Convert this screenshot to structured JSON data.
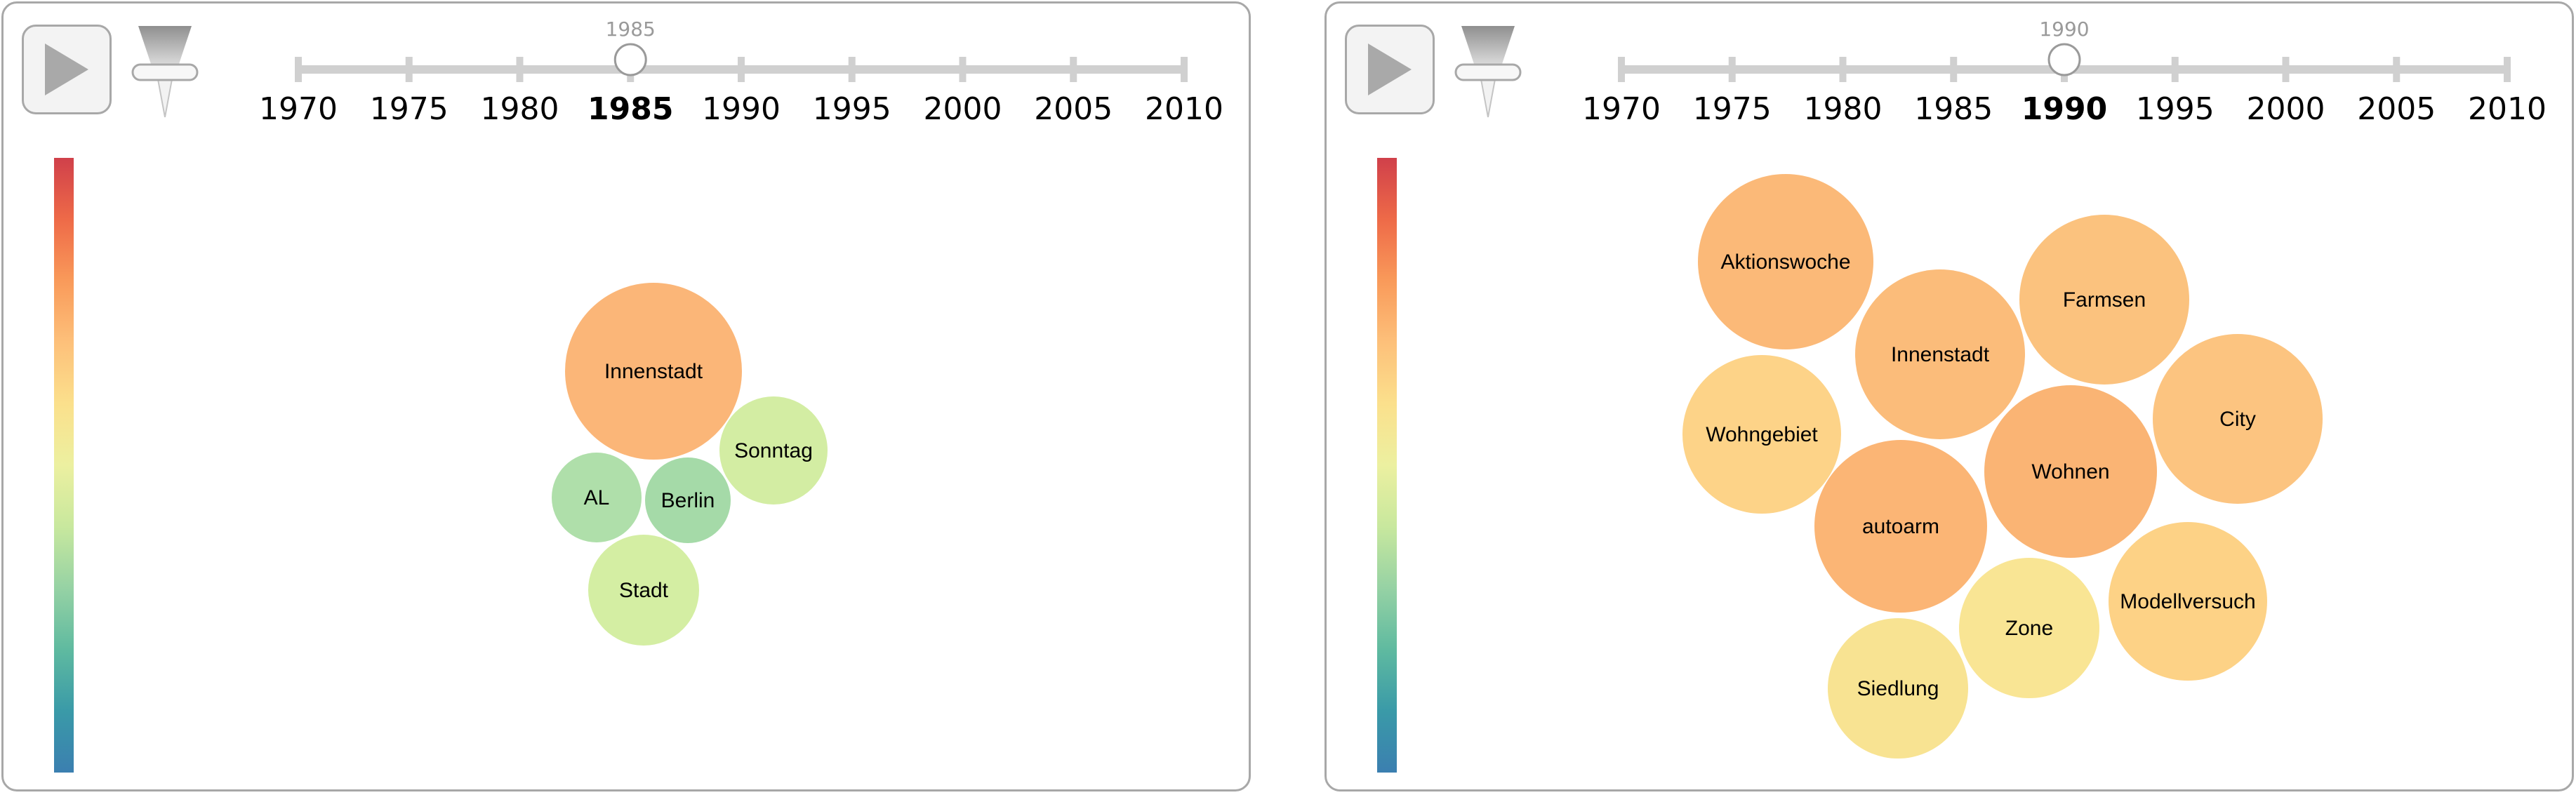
{
  "timeline": {
    "years": [
      "1970",
      "1975",
      "1980",
      "1985",
      "1990",
      "1995",
      "2000",
      "2005",
      "2010"
    ]
  },
  "colorbar": {
    "ticks": [
      "12",
      "11",
      "10",
      "9.0",
      "8.0",
      "7.0",
      "6.0",
      "5.0",
      "4.0",
      "3.0",
      "2.0",
      "1.0",
      "0.0"
    ],
    "min": 0,
    "max": 12.5,
    "colors": [
      "#3b7fb0",
      "#3a9aa8",
      "#5fbaa0",
      "#96d2a4",
      "#c8e89e",
      "#ecf0a0",
      "#fbe08c",
      "#fdc07a",
      "#f99a5a",
      "#ee6a48",
      "#d0404a"
    ]
  },
  "icons": {
    "play": "play-icon",
    "pin": "pin-icon"
  },
  "panels": [
    {
      "selected_year": "1985",
      "slider_caption": "1985",
      "slider_value": 1985,
      "bubbles": [
        {
          "label": "Innenstadt",
          "value": 8.6,
          "color": "#fbb678"
        },
        {
          "label": "Sonntag",
          "value": 5.5,
          "color": "#d3eda3"
        },
        {
          "label": "AL",
          "value": 4.6,
          "color": "#afdfaa"
        },
        {
          "label": "Berlin",
          "value": 4.3,
          "color": "#a5daa8"
        },
        {
          "label": "Stadt",
          "value": 5.6,
          "color": "#d4eea3"
        }
      ]
    },
    {
      "selected_year": "1990",
      "slider_caption": "1990",
      "slider_value": 1990,
      "bubbles": [
        {
          "label": "Aktionswoche",
          "value": 8.8,
          "color": "#fbb978"
        },
        {
          "label": "Farmsen",
          "value": 8.4,
          "color": "#fbc27e"
        },
        {
          "label": "Innenstadt",
          "value": 8.6,
          "color": "#fbbc7a"
        },
        {
          "label": "City",
          "value": 8.3,
          "color": "#fcc480"
        },
        {
          "label": "Wohngebiet",
          "value": 7.7,
          "color": "#fdd388"
        },
        {
          "label": "Wohnen",
          "value": 9.0,
          "color": "#fab474"
        },
        {
          "label": "autoarm",
          "value": 8.9,
          "color": "#fbb575"
        },
        {
          "label": "Modellversuch",
          "value": 7.8,
          "color": "#fdd286"
        },
        {
          "label": "Zone",
          "value": 6.9,
          "color": "#f9e594"
        },
        {
          "label": "Siedlung",
          "value": 7.1,
          "color": "#f8e392"
        }
      ]
    }
  ]
}
